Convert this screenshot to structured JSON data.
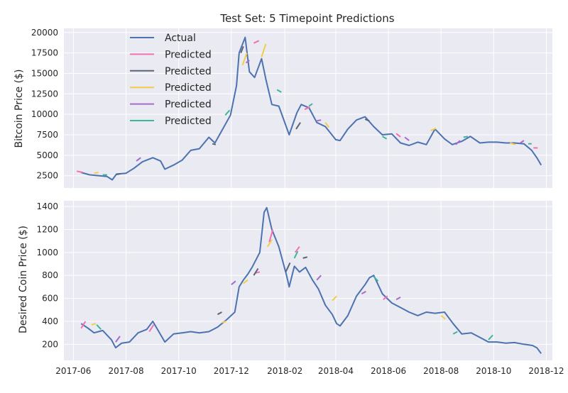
{
  "chart_data": [
    {
      "type": "line",
      "title": "Test Set: 5 Timepoint Predictions",
      "ylabel": "Bitcoin Price ($)",
      "xlabel": "",
      "grid": true,
      "legend_position": "top-left",
      "xlim": [
        "2017-05-21",
        "2018-12-08"
      ],
      "ylim": [
        1000,
        20500
      ],
      "yticks": [
        2500,
        5000,
        7500,
        10000,
        12500,
        15000,
        17500,
        20000
      ],
      "xticks": [
        "2017-06",
        "2017-08",
        "2017-10",
        "2017-12",
        "2018-02",
        "2018-04",
        "2018-06",
        "2018-08",
        "2018-10",
        "2018-12"
      ],
      "legend": [
        "Actual",
        "Predicted",
        "Predicted",
        "Predicted",
        "Predicted",
        "Predicted"
      ],
      "actual": {
        "name": "Actual",
        "color": "#4c72b0",
        "x": [
          "2017-06-10",
          "2017-06-20",
          "2017-07-01",
          "2017-07-10",
          "2017-07-16",
          "2017-07-21",
          "2017-08-01",
          "2017-08-10",
          "2017-08-20",
          "2017-09-01",
          "2017-09-10",
          "2017-09-15",
          "2017-09-25",
          "2017-10-05",
          "2017-10-15",
          "2017-10-25",
          "2017-11-05",
          "2017-11-12",
          "2017-11-20",
          "2017-11-30",
          "2017-12-07",
          "2017-12-10",
          "2017-12-17",
          "2017-12-22",
          "2017-12-28",
          "2018-01-05",
          "2018-01-10",
          "2018-01-17",
          "2018-01-25",
          "2018-02-06",
          "2018-02-15",
          "2018-02-20",
          "2018-03-01",
          "2018-03-10",
          "2018-03-20",
          "2018-04-01",
          "2018-04-06",
          "2018-04-15",
          "2018-04-25",
          "2018-05-05",
          "2018-05-15",
          "2018-05-25",
          "2018-06-05",
          "2018-06-15",
          "2018-06-25",
          "2018-07-05",
          "2018-07-15",
          "2018-07-25",
          "2018-08-05",
          "2018-08-14",
          "2018-08-25",
          "2018-09-04",
          "2018-09-15",
          "2018-09-25",
          "2018-10-05",
          "2018-10-15",
          "2018-10-25",
          "2018-11-05",
          "2018-11-14",
          "2018-11-20",
          "2018-11-25"
        ],
        "y": [
          2900,
          2600,
          2500,
          2400,
          2000,
          2700,
          2800,
          3400,
          4200,
          4700,
          4300,
          3300,
          3800,
          4400,
          5600,
          5800,
          7200,
          6500,
          8000,
          9900,
          13500,
          17500,
          19400,
          15200,
          14500,
          16800,
          14300,
          11200,
          11000,
          7500,
          10200,
          11200,
          10800,
          9000,
          8500,
          6900,
          6800,
          8200,
          9300,
          9700,
          8500,
          7500,
          7600,
          6500,
          6200,
          6600,
          6300,
          8200,
          7000,
          6300,
          6700,
          7300,
          6500,
          6600,
          6600,
          6500,
          6500,
          6400,
          5600,
          4700,
          3800
        ]
      },
      "predicted": [
        {
          "name": "Predicted",
          "color": "#f46eb2",
          "segments": [
            [
              [
                "2017-06-05",
                3050
              ],
              [
                "2017-06-12",
                2900
              ]
            ],
            [
              [
                "2017-12-27",
                18700
              ],
              [
                "2018-01-02",
                19000
              ]
            ],
            [
              [
                "2018-02-24",
                10600
              ],
              [
                "2018-03-02",
                10900
              ]
            ],
            [
              [
                "2018-06-10",
                7650
              ],
              [
                "2018-06-15",
                7250
              ]
            ],
            [
              [
                "2018-11-16",
                5900
              ],
              [
                "2018-11-21",
                5900
              ]
            ]
          ]
        },
        {
          "name": "Predicted",
          "color": "#5a6478",
          "segments": [
            [
              [
                "2017-07-21",
                2650
              ],
              [
                "2017-07-26",
                2750
              ]
            ],
            [
              [
                "2017-11-09",
                6400
              ],
              [
                "2017-11-13",
                6300
              ]
            ],
            [
              [
                "2017-12-12",
                17500
              ],
              [
                "2017-12-15",
                18300
              ]
            ],
            [
              [
                "2018-02-14",
                8200
              ],
              [
                "2018-02-19",
                9000
              ]
            ],
            [
              [
                "2018-05-05",
                9400
              ],
              [
                "2018-05-10",
                9200
              ]
            ]
          ]
        },
        {
          "name": "Predicted",
          "color": "#f2cc4b",
          "segments": [
            [
              [
                "2017-06-25",
                2800
              ],
              [
                "2017-06-30",
                2900
              ]
            ],
            [
              [
                "2017-12-14",
                16000
              ],
              [
                "2017-12-19",
                17500
              ]
            ],
            [
              [
                "2018-01-05",
                17000
              ],
              [
                "2018-01-10",
                18600
              ]
            ],
            [
              [
                "2018-03-20",
                9000
              ],
              [
                "2018-03-24",
                8400
              ]
            ],
            [
              [
                "2018-07-20",
                8000
              ],
              [
                "2018-07-26",
                8300
              ]
            ],
            [
              [
                "2018-10-20",
                6500
              ],
              [
                "2018-10-26",
                6300
              ]
            ]
          ]
        },
        {
          "name": "Predicted",
          "color": "#a56acb",
          "segments": [
            [
              [
                "2017-08-13",
                4300
              ],
              [
                "2017-08-18",
                4700
              ]
            ],
            [
              [
                "2017-12-18",
                16300
              ],
              [
                "2017-12-22",
                16600
              ]
            ],
            [
              [
                "2018-03-10",
                9200
              ],
              [
                "2018-03-15",
                9300
              ]
            ],
            [
              [
                "2018-06-20",
                7200
              ],
              [
                "2018-06-25",
                6800
              ]
            ],
            [
              [
                "2018-08-18",
                6300
              ],
              [
                "2018-08-23",
                6800
              ]
            ],
            [
              [
                "2018-11-01",
                6500
              ],
              [
                "2018-11-05",
                6800
              ]
            ]
          ]
        },
        {
          "name": "Predicted",
          "color": "#3fb59a",
          "segments": [
            [
              [
                "2017-07-05",
                2600
              ],
              [
                "2017-07-10",
                2600
              ]
            ],
            [
              [
                "2017-11-24",
                9900
              ],
              [
                "2017-11-29",
                10500
              ]
            ],
            [
              [
                "2018-01-23",
                13000
              ],
              [
                "2018-01-28",
                12700
              ]
            ],
            [
              [
                "2018-03-01",
                11000
              ],
              [
                "2018-03-05",
                11300
              ]
            ],
            [
              [
                "2018-05-25",
                7300
              ],
              [
                "2018-05-30",
                7000
              ]
            ],
            [
              [
                "2018-08-27",
                7200
              ],
              [
                "2018-09-01",
                7300
              ]
            ],
            [
              [
                "2018-11-10",
                6400
              ],
              [
                "2018-11-14",
                6400
              ]
            ]
          ]
        }
      ]
    },
    {
      "type": "line",
      "title": "",
      "ylabel": "Desired Coin Price ($)",
      "xlabel": "",
      "grid": true,
      "xlim": [
        "2017-05-21",
        "2018-12-08"
      ],
      "ylim": [
        60,
        1450
      ],
      "yticks": [
        200,
        400,
        600,
        800,
        1000,
        1200,
        1400
      ],
      "xticks": [
        "2017-06",
        "2017-08",
        "2017-10",
        "2017-12",
        "2018-02",
        "2018-04",
        "2018-06",
        "2018-08",
        "2018-10",
        "2018-12"
      ],
      "actual": {
        "name": "Actual",
        "color": "#4c72b0",
        "x": [
          "2017-06-10",
          "2017-06-18",
          "2017-06-25",
          "2017-07-05",
          "2017-07-15",
          "2017-07-20",
          "2017-07-27",
          "2017-08-05",
          "2017-08-15",
          "2017-08-25",
          "2017-09-01",
          "2017-09-08",
          "2017-09-15",
          "2017-09-25",
          "2017-10-05",
          "2017-10-15",
          "2017-10-25",
          "2017-11-05",
          "2017-11-15",
          "2017-11-25",
          "2017-12-05",
          "2017-12-10",
          "2017-12-15",
          "2017-12-20",
          "2017-12-25",
          "2018-01-03",
          "2018-01-08",
          "2018-01-11",
          "2018-01-17",
          "2018-01-25",
          "2018-02-03",
          "2018-02-06",
          "2018-02-12",
          "2018-02-18",
          "2018-02-25",
          "2018-03-05",
          "2018-03-12",
          "2018-03-20",
          "2018-03-28",
          "2018-04-02",
          "2018-04-06",
          "2018-04-15",
          "2018-04-25",
          "2018-05-05",
          "2018-05-10",
          "2018-05-15",
          "2018-05-25",
          "2018-06-05",
          "2018-06-15",
          "2018-06-25",
          "2018-07-05",
          "2018-07-15",
          "2018-07-25",
          "2018-08-05",
          "2018-08-15",
          "2018-08-25",
          "2018-09-05",
          "2018-09-15",
          "2018-09-25",
          "2018-10-05",
          "2018-10-15",
          "2018-10-25",
          "2018-11-05",
          "2018-11-15",
          "2018-11-20",
          "2018-11-25"
        ],
        "y": [
          380,
          340,
          300,
          320,
          240,
          170,
          210,
          220,
          300,
          330,
          400,
          310,
          220,
          290,
          300,
          310,
          300,
          310,
          350,
          410,
          480,
          700,
          760,
          810,
          870,
          1000,
          1350,
          1390,
          1200,
          1050,
          800,
          700,
          880,
          830,
          870,
          760,
          680,
          540,
          460,
          380,
          360,
          450,
          620,
          720,
          780,
          800,
          640,
          560,
          520,
          480,
          450,
          480,
          470,
          480,
          380,
          290,
          300,
          260,
          220,
          220,
          210,
          215,
          200,
          190,
          170,
          120
        ]
      },
      "predicted": [
        {
          "name": "Predicted",
          "color": "#f46eb2",
          "segments": [
            [
              [
                "2017-06-10",
                340
              ],
              [
                "2017-06-15",
                400
              ]
            ],
            [
              [
                "2017-08-28",
                310
              ],
              [
                "2017-09-02",
                370
              ]
            ],
            [
              [
                "2017-12-28",
                820
              ],
              [
                "2018-01-03",
                830
              ]
            ],
            [
              [
                "2018-01-14",
                1090
              ],
              [
                "2018-01-18",
                1200
              ]
            ],
            [
              [
                "2018-02-13",
                1000
              ],
              [
                "2018-02-18",
                1050
              ]
            ],
            [
              [
                "2018-05-26",
                590
              ],
              [
                "2018-05-31",
                620
              ]
            ]
          ]
        },
        {
          "name": "Predicted",
          "color": "#5a6478",
          "segments": [
            [
              [
                "2017-11-15",
                460
              ],
              [
                "2017-11-20",
                480
              ]
            ],
            [
              [
                "2017-12-27",
                800
              ],
              [
                "2018-01-01",
                860
              ]
            ],
            [
              [
                "2018-02-02",
                830
              ],
              [
                "2018-02-07",
                910
              ]
            ],
            [
              [
                "2018-02-22",
                950
              ],
              [
                "2018-02-27",
                960
              ]
            ]
          ]
        },
        {
          "name": "Predicted",
          "color": "#f2cc4b",
          "segments": [
            [
              [
                "2017-06-22",
                370
              ],
              [
                "2017-06-27",
                380
              ]
            ],
            [
              [
                "2017-11-20",
                390
              ],
              [
                "2017-11-25",
                400
              ]
            ],
            [
              [
                "2017-12-15",
                730
              ],
              [
                "2017-12-20",
                760
              ]
            ],
            [
              [
                "2018-01-12",
                1050
              ],
              [
                "2018-01-17",
                1110
              ]
            ],
            [
              [
                "2018-03-28",
                580
              ],
              [
                "2018-04-02",
                620
              ]
            ],
            [
              [
                "2018-08-01",
                450
              ],
              [
                "2018-08-06",
                420
              ]
            ]
          ]
        },
        {
          "name": "Predicted",
          "color": "#a56acb",
          "segments": [
            [
              [
                "2017-07-20",
                220
              ],
              [
                "2017-07-25",
                270
              ]
            ],
            [
              [
                "2017-12-01",
                720
              ],
              [
                "2017-12-06",
                750
              ]
            ],
            [
              [
                "2018-03-10",
                760
              ],
              [
                "2018-03-15",
                800
              ]
            ],
            [
              [
                "2018-05-01",
                640
              ],
              [
                "2018-05-06",
                660
              ]
            ],
            [
              [
                "2018-06-10",
                590
              ],
              [
                "2018-06-15",
                610
              ]
            ]
          ]
        },
        {
          "name": "Predicted",
          "color": "#3fb59a",
          "segments": [
            [
              [
                "2017-06-28",
                370
              ],
              [
                "2017-07-03",
                330
              ]
            ],
            [
              [
                "2018-02-12",
                950
              ],
              [
                "2018-02-16",
                1010
              ]
            ],
            [
              [
                "2018-05-15",
                790
              ],
              [
                "2018-05-20",
                750
              ]
            ],
            [
              [
                "2018-08-15",
                290
              ],
              [
                "2018-08-20",
                310
              ]
            ],
            [
              [
                "2018-09-25",
                240
              ],
              [
                "2018-09-30",
                280
              ]
            ]
          ]
        }
      ]
    }
  ]
}
